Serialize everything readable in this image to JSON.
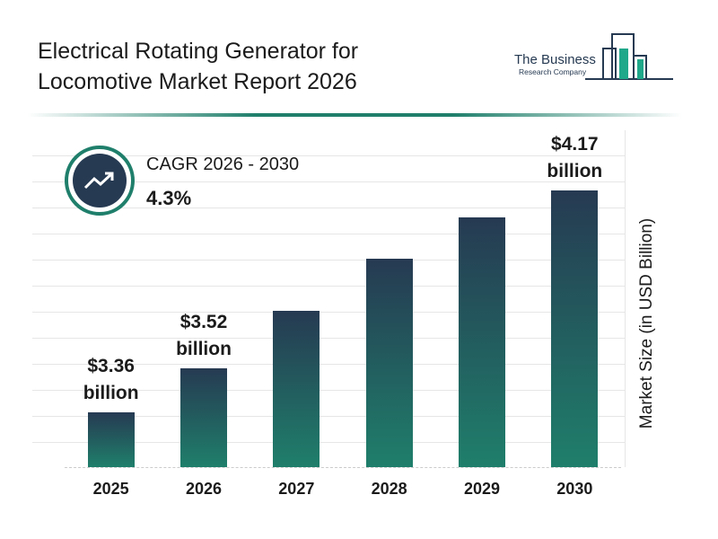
{
  "header": {
    "title": "Electrical Rotating Generator for Locomotive Market Report 2026",
    "logo_line1": "The Business",
    "logo_line2": "Research Company"
  },
  "cagr": {
    "label": "CAGR 2026 - 2030",
    "value": "4.3%"
  },
  "chart_data": {
    "type": "bar",
    "y_label": "Market Size (in USD Billion)",
    "categories": [
      "2025",
      "2026",
      "2027",
      "2028",
      "2029",
      "2030"
    ],
    "values": [
      3.36,
      3.52,
      3.73,
      3.92,
      4.07,
      4.17
    ],
    "value_labels": [
      "$3.36 billion",
      "$3.52 billion",
      null,
      null,
      null,
      "$4.17 billion"
    ],
    "colors": [
      "#263a52",
      "#1f7f6b"
    ],
    "ylim": [
      3.16,
      4.3
    ]
  }
}
